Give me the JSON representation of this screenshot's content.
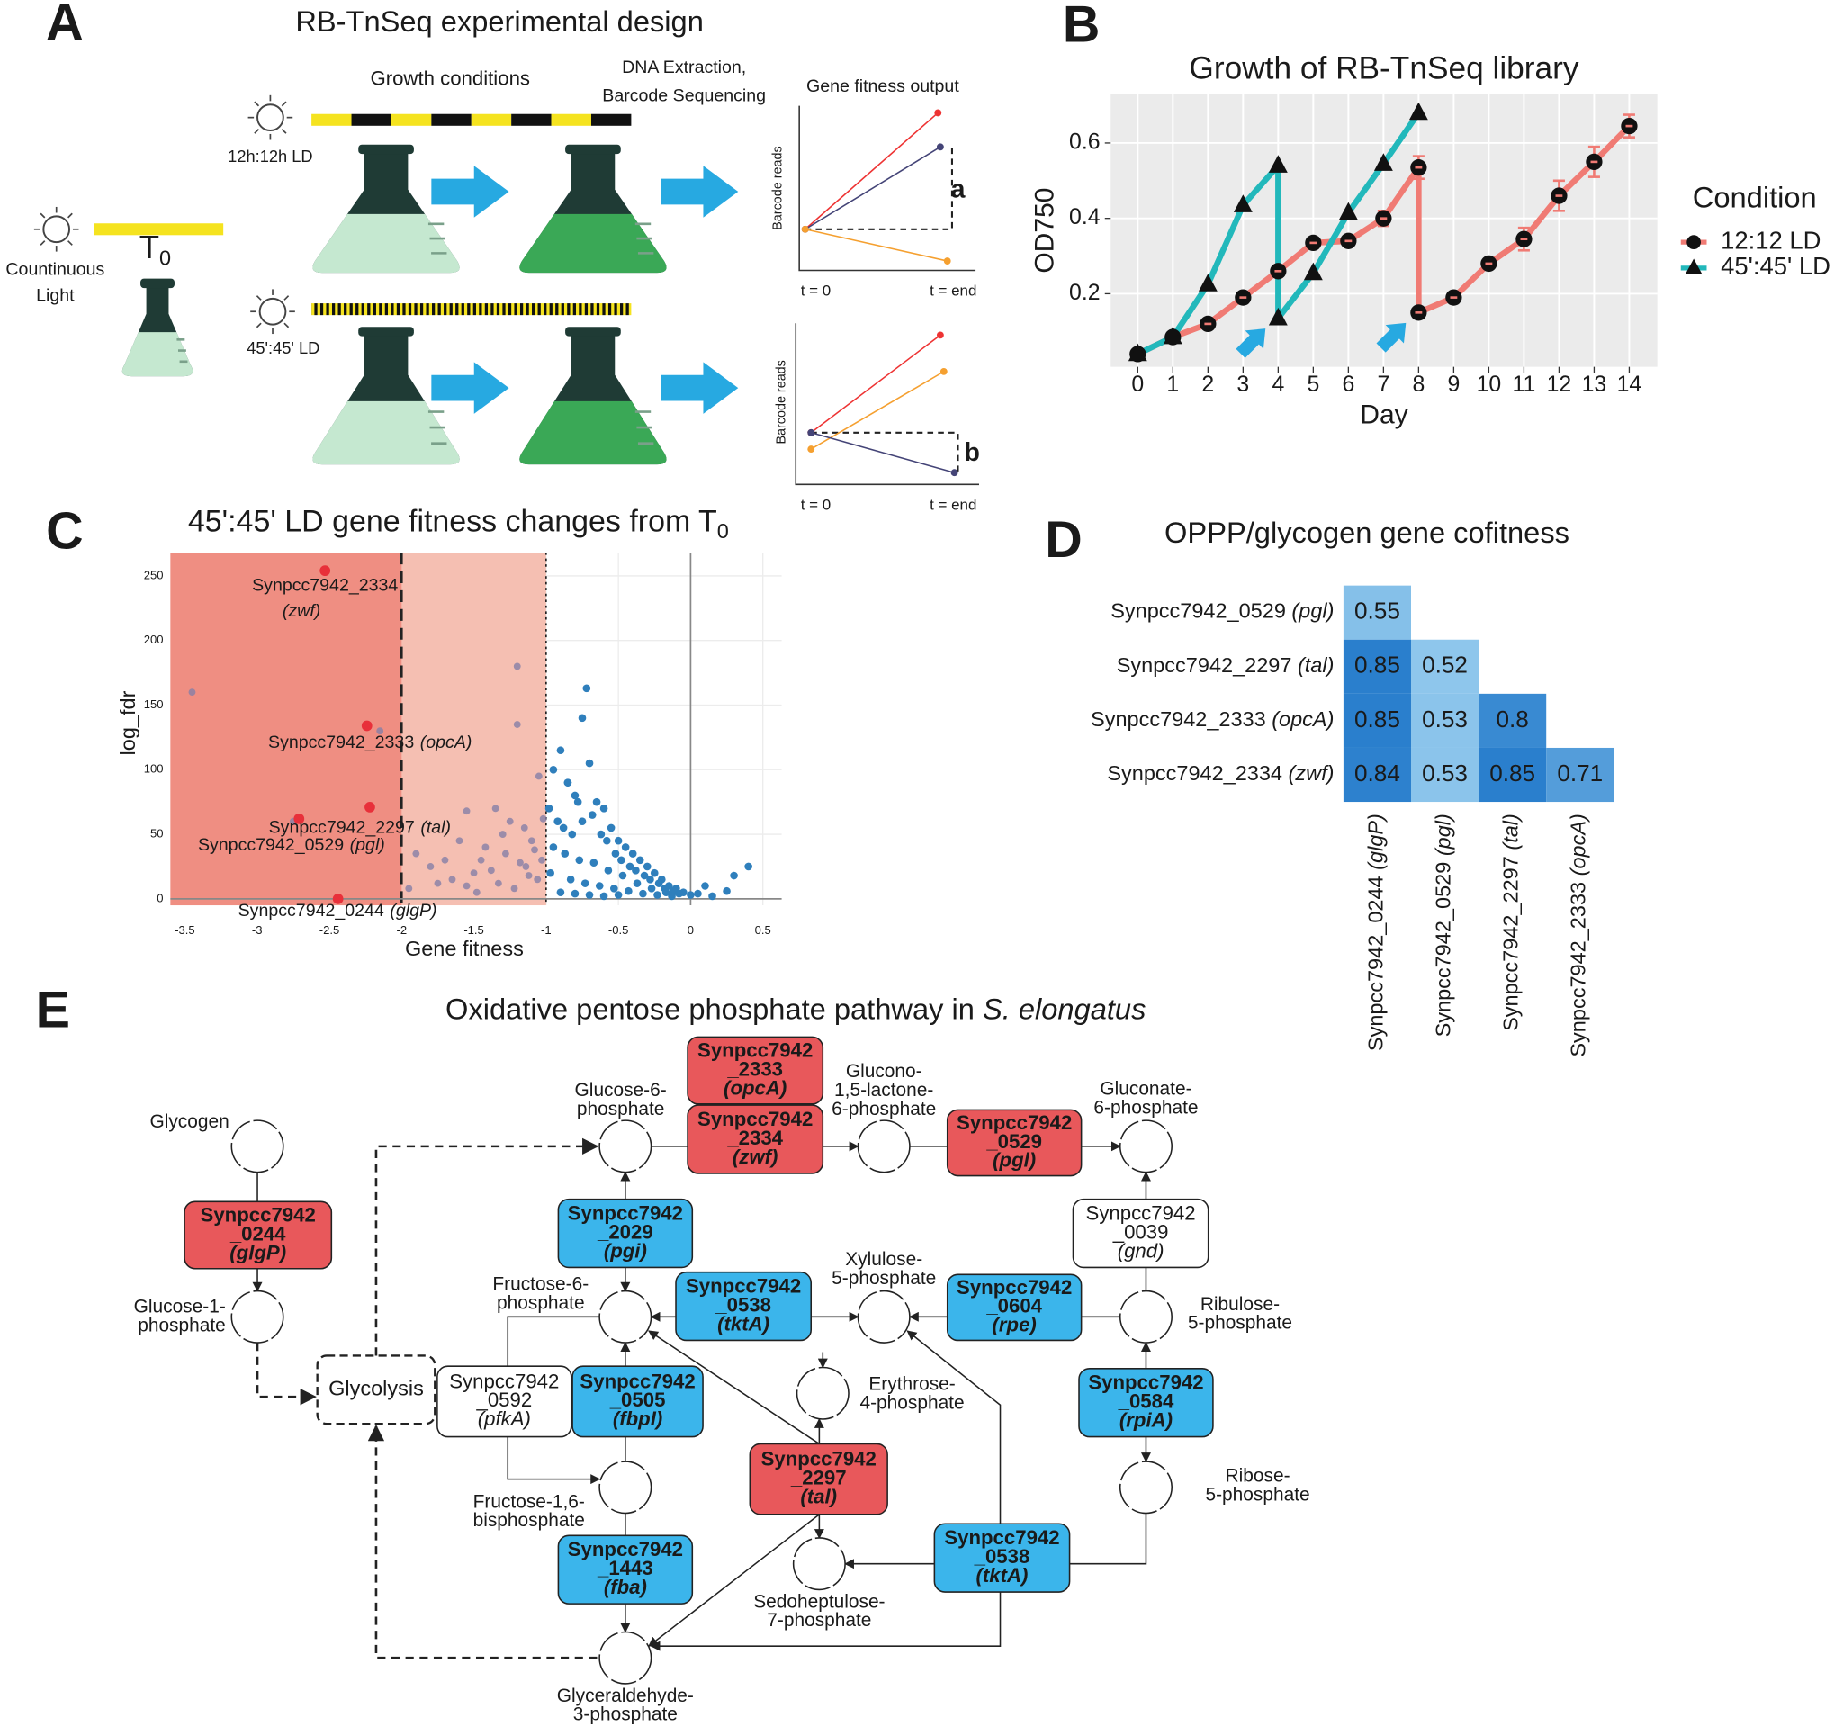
{
  "panel_labels": [
    "A",
    "B",
    "C",
    "D",
    "E"
  ],
  "panel_a": {
    "title": "RB-TnSeq experimental design",
    "growth_conditions": "Growth conditions",
    "sequencing": [
      "DNA Extraction,",
      "Barcode Sequencing"
    ],
    "fitness_output": "Gene fitness output",
    "ld_12": "12h:12h LD",
    "ld_45": "45':45' LD",
    "continuous_light": [
      "Countinuous",
      "Light"
    ],
    "t0": "T",
    "t0_subscript": "0",
    "plots": [
      {
        "y_label": "Barcode reads",
        "x_start": "t = 0",
        "x_end": "t = end",
        "marker": "a"
      },
      {
        "y_label": "Barcode reads",
        "x_start": "t = 0",
        "x_end": "t = end",
        "marker": "b"
      }
    ]
  },
  "chart_data": [
    {
      "type": "line",
      "title": "Growth of RB-TnSeq library",
      "xlabel": "Day",
      "ylabel": "OD750",
      "legend_title": "Condition",
      "legend": "right",
      "grid": true,
      "xlim": [
        -0.77,
        14.8
      ],
      "ylim": [
        0.006,
        0.73
      ],
      "xticks": [
        0,
        1,
        2,
        3,
        4,
        5,
        6,
        7,
        8,
        9,
        10,
        11,
        12,
        13,
        14
      ],
      "yticks": [
        0.2,
        0.4,
        0.6
      ],
      "series": [
        {
          "name": "12:12 LD",
          "color": "#f07b74",
          "marker": "circle",
          "x": [
            0,
            1,
            2,
            3,
            4,
            5,
            6,
            7,
            8,
            8,
            9,
            10,
            11,
            12,
            13,
            14
          ],
          "values": [
            0.04,
            0.085,
            0.12,
            0.19,
            0.26,
            0.335,
            0.34,
            0.4,
            0.535,
            0.15,
            0.19,
            0.28,
            0.345,
            0.46,
            0.55,
            0.645
          ],
          "errors": [
            0.005,
            0.005,
            0.01,
            0.005,
            0.01,
            0.01,
            0.01,
            0.02,
            0.03,
            0.01,
            0.01,
            0.01,
            0.03,
            0.04,
            0.04,
            0.03
          ]
        },
        {
          "name": "45':45' LD",
          "color": "#22b8bb",
          "marker": "triangle",
          "x": [
            0,
            1,
            2,
            3,
            4,
            4,
            5,
            6,
            7,
            8
          ],
          "values": [
            0.04,
            0.085,
            0.225,
            0.435,
            0.54,
            0.135,
            0.255,
            0.415,
            0.545,
            0.68
          ]
        }
      ],
      "annotations": [
        {
          "x": 4,
          "y": 0.135
        },
        {
          "x": 8,
          "y": 0.15
        }
      ]
    },
    {
      "type": "scatter",
      "title": "45':45' LD gene fitness changes from T",
      "title_subscript": "0",
      "xlabel": "Gene fitness",
      "ylabel": "log_fdr",
      "grid": true,
      "xlim": [
        -3.6,
        0.63
      ],
      "ylim": [
        -5,
        268
      ],
      "xticks": [
        -3.5,
        -3,
        -2.5,
        -2,
        -1.5,
        -1,
        -0.5,
        0,
        0.5
      ],
      "yticks": [
        0,
        50,
        100,
        150,
        200,
        250
      ],
      "shading": [
        {
          "xmax": -1,
          "color": "#f5bfb2"
        },
        {
          "xmax": -2,
          "color": "#ef8e82"
        }
      ],
      "vlines": [
        {
          "x": -2,
          "style": "dashed"
        },
        {
          "x": -1,
          "style": "dotted"
        },
        {
          "x": 0,
          "style": "solid"
        }
      ],
      "series": [
        {
          "color": "#2f7fbc",
          "x": [
            -0.72,
            -0.75,
            -0.95,
            -0.9,
            -0.85,
            -0.8,
            -0.7,
            -0.65,
            -0.6,
            -0.55,
            -0.5,
            -0.45,
            -0.4,
            -0.35,
            -0.3,
            -0.25,
            -0.2,
            -0.15,
            -0.1,
            -0.05,
            0,
            0.05,
            0.1,
            0.3,
            0.4,
            -0.98,
            -0.92,
            -0.88,
            -0.82,
            -0.78,
            -0.68,
            -0.62,
            -0.58,
            -0.52,
            -0.48,
            -0.42,
            -0.38,
            -0.32,
            -0.28,
            -0.22,
            -0.18,
            -0.12,
            -0.08,
            -0.95,
            -0.87,
            -0.77,
            -0.67,
            -0.57,
            -0.47,
            -0.37,
            -0.27,
            -0.17,
            -0.97,
            -0.83,
            -0.73,
            -0.63,
            -0.53,
            -0.43,
            -0.33,
            -0.23,
            -0.13,
            -0.9,
            -0.8,
            -0.7,
            -0.6,
            -0.5,
            0.15,
            0.25,
            -0.85,
            -0.75
          ],
          "values": [
            163,
            140,
            100,
            115,
            90,
            80,
            105,
            75,
            70,
            55,
            45,
            40,
            35,
            30,
            25,
            20,
            15,
            10,
            8,
            5,
            3,
            4,
            10,
            18,
            25,
            70,
            60,
            55,
            50,
            75,
            65,
            50,
            45,
            35,
            30,
            25,
            22,
            18,
            15,
            12,
            8,
            6,
            4,
            40,
            35,
            30,
            28,
            22,
            18,
            12,
            8,
            5,
            20,
            15,
            12,
            10,
            8,
            6,
            4,
            3,
            2,
            5,
            4,
            3,
            2,
            3,
            2,
            6,
            90,
            60
          ]
        },
        {
          "color": "#867fa6",
          "x": [
            -3.45,
            -2.75,
            -2.15,
            -1.2,
            -1.2,
            -1.55,
            -1.35,
            -1.42,
            -1.6,
            -1.7,
            -1.8,
            -1.9,
            -1.5,
            -1.3,
            -1.25,
            -1.15,
            -1.1,
            -1.05,
            -1.65,
            -1.75,
            -1.45,
            -1.38,
            -1.28,
            -1.18,
            -1.12,
            -1.08,
            -1.02,
            -1.95,
            -1.55,
            -1.33,
            -1.22,
            -1.14,
            -1.06,
            -1.48,
            -1.03
          ],
          "values": [
            160,
            60,
            130,
            180,
            135,
            68,
            70,
            40,
            45,
            30,
            25,
            35,
            20,
            50,
            60,
            55,
            45,
            95,
            15,
            12,
            30,
            22,
            35,
            28,
            18,
            38,
            62,
            8,
            10,
            12,
            8,
            25,
            15,
            5,
            30
          ]
        },
        {
          "color": "#e8303a",
          "x": [
            -2.53,
            -2.24,
            -2.22,
            -2.71,
            -2.44
          ],
          "values": [
            254,
            134,
            71,
            62,
            0
          ],
          "labels": [
            "Synpcc7942_2334",
            "Synpcc7942_2333",
            "Synpcc7942_2297",
            "Synpcc7942_0529",
            "Synpcc7942_0244"
          ],
          "genes": [
            "(zwf)",
            "(opcA)",
            "(tal)",
            "(pgl)",
            "(glgP)"
          ]
        }
      ]
    },
    {
      "type": "heatmap",
      "title": "OPPP/glycogen gene cofitness",
      "colorscale": [
        "#8ec6ec",
        "#2a7fcd"
      ],
      "rows": [
        {
          "locus": "Synpcc7942_0529",
          "gene": "(pgl)"
        },
        {
          "locus": "Synpcc7942_2297",
          "gene": "(tal)"
        },
        {
          "locus": "Synpcc7942_2333",
          "gene": "(opcA)"
        },
        {
          "locus": "Synpcc7942_2334",
          "gene": "(zwf)"
        }
      ],
      "columns": [
        {
          "locus": "Synpcc7942_0244",
          "gene": "(glgP)"
        },
        {
          "locus": "Synpcc7942_0529",
          "gene": "(pgl)"
        },
        {
          "locus": "Synpcc7942_2297",
          "gene": "(tal)"
        },
        {
          "locus": "Synpcc7942_2333",
          "gene": "(opcA)"
        }
      ],
      "values": [
        [
          0.55
        ],
        [
          0.85,
          0.52
        ],
        [
          0.85,
          0.53,
          0.8
        ],
        [
          0.84,
          0.53,
          0.85,
          0.71
        ]
      ]
    }
  ],
  "panel_e": {
    "title": "Oxidative pentose phosphate pathway in ",
    "title_italic": "S. elongatus",
    "glycolysis": "Glycolysis",
    "metabolites": [
      {
        "lines": [
          "Glycogen"
        ]
      },
      {
        "lines": [
          "Glucose-1-",
          "phosphate"
        ]
      },
      {
        "lines": [
          "Glucose-6-",
          "phosphate"
        ]
      },
      {
        "lines": [
          "Glucono-",
          "1,5-lactone-",
          "6-phosphate"
        ]
      },
      {
        "lines": [
          "Gluconate-",
          "6-phosphate"
        ]
      },
      {
        "lines": [
          "Fructose-6-",
          "phosphate"
        ]
      },
      {
        "lines": [
          "Xylulose-",
          "5-phosphate"
        ]
      },
      {
        "lines": [
          "Ribulose-",
          "5-phosphate"
        ]
      },
      {
        "lines": [
          "Erythrose-",
          "4-phosphate"
        ]
      },
      {
        "lines": [
          "Fructose-1,6-",
          "bisphosphate"
        ]
      },
      {
        "lines": [
          "Ribose-",
          "5-phosphate"
        ]
      },
      {
        "lines": [
          "Sedoheptulose-",
          "7-phosphate"
        ]
      },
      {
        "lines": [
          "Glyceraldehyde-",
          "3-phosphate"
        ]
      }
    ],
    "enzymes": [
      {
        "lines": [
          "Synpcc7942",
          "_2333",
          "(opcA)"
        ],
        "color": "#e8585b"
      },
      {
        "lines": [
          "Synpcc7942",
          "_2334",
          "(zwf)"
        ],
        "color": "#e8585b"
      },
      {
        "lines": [
          "Synpcc7942",
          "_0529",
          "(pgl)"
        ],
        "color": "#e8585b"
      },
      {
        "lines": [
          "Synpcc7942",
          "_0244",
          "(glgP)"
        ],
        "color": "#e8585b"
      },
      {
        "lines": [
          "Synpcc7942",
          "_2029",
          "(pgi)"
        ],
        "color": "#3bb5eb"
      },
      {
        "lines": [
          "Synpcc7942",
          "_0039",
          "(gnd)"
        ],
        "color": "#ffffff"
      },
      {
        "lines": [
          "Synpcc7942",
          "_0538",
          "(tktA)"
        ],
        "color": "#3bb5eb"
      },
      {
        "lines": [
          "Synpcc7942",
          "_0604",
          "(rpe)"
        ],
        "color": "#3bb5eb"
      },
      {
        "lines": [
          "Synpcc7942",
          "_0592",
          "(pfkA)"
        ],
        "color": "#ffffff"
      },
      {
        "lines": [
          "Synpcc7942",
          "_0505",
          "(fbpI)"
        ],
        "color": "#3bb5eb"
      },
      {
        "lines": [
          "Synpcc7942",
          "_0584",
          "(rpiA)"
        ],
        "color": "#3bb5eb"
      },
      {
        "lines": [
          "Synpcc7942",
          "_2297",
          "(tal)"
        ],
        "color": "#e8585b"
      },
      {
        "lines": [
          "Synpcc7942",
          "_1443",
          "(fba)"
        ],
        "color": "#3bb5eb"
      },
      {
        "lines": [
          "Synpcc7942",
          "_0538",
          "(tktA)"
        ],
        "color": "#3bb5eb"
      }
    ]
  }
}
